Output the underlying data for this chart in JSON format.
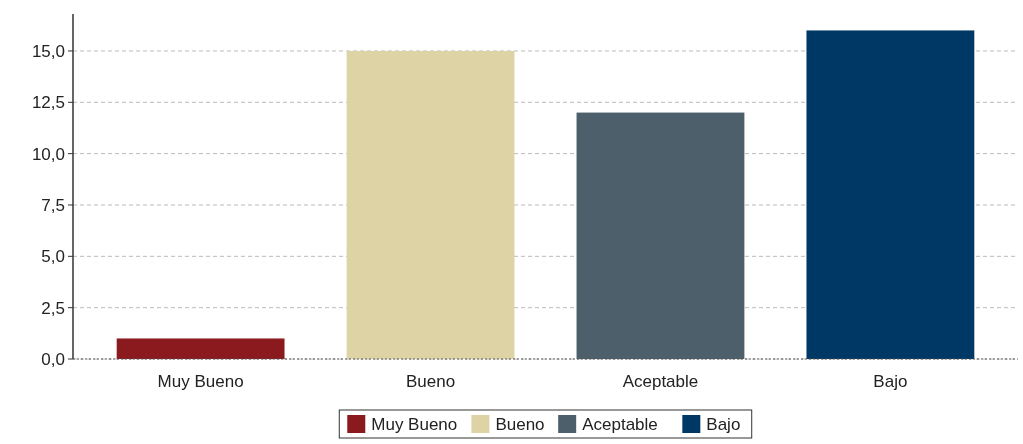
{
  "chart_data": {
    "type": "bar",
    "stacked": true,
    "categories": [
      "Muy Bueno",
      "Bueno",
      "Aceptable",
      "Bajo"
    ],
    "series": [
      {
        "name": "Muy Bueno",
        "color": "#8b1a1f",
        "values": [
          1,
          null,
          null,
          null
        ]
      },
      {
        "name": "Bueno",
        "color": "#ddd3a5",
        "values": [
          null,
          15,
          null,
          null
        ]
      },
      {
        "name": "Aceptable",
        "color": "#4d5f6b",
        "values": [
          null,
          null,
          12,
          null
        ]
      },
      {
        "name": "Bajo",
        "color": "#003865",
        "values": [
          null,
          null,
          null,
          16
        ]
      }
    ],
    "ylim": [
      0,
      16.8
    ],
    "yticks": [
      {
        "value": 0,
        "label": "0,0"
      },
      {
        "value": 2.5,
        "label": "2,5"
      },
      {
        "value": 5,
        "label": "5,0"
      },
      {
        "value": 7.5,
        "label": "7,5"
      },
      {
        "value": 10,
        "label": "10,0"
      },
      {
        "value": 12.5,
        "label": "12,5"
      },
      {
        "value": 15,
        "label": "15,0"
      }
    ],
    "grid": "y",
    "legend": "bottom"
  }
}
